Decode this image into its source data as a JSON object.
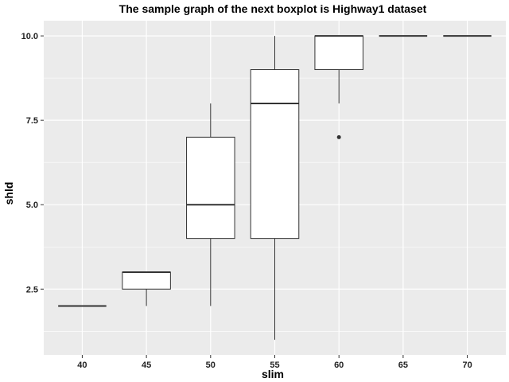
{
  "chart_data": {
    "type": "boxplot",
    "title": "The sample graph of the next boxplot is Highway1 dataset",
    "xlabel": "slim",
    "ylabel": "shld",
    "categories": [
      "40",
      "45",
      "50",
      "55",
      "60",
      "65",
      "70"
    ],
    "boxes": [
      {
        "category": "40",
        "min": 2,
        "q1": 2,
        "median": 2,
        "q3": 2,
        "max": 2,
        "outliers": []
      },
      {
        "category": "45",
        "min": 2,
        "q1": 2.5,
        "median": 3,
        "q3": 3,
        "max": 3,
        "outliers": []
      },
      {
        "category": "50",
        "min": 2,
        "q1": 4,
        "median": 5,
        "q3": 7,
        "max": 8,
        "outliers": []
      },
      {
        "category": "55",
        "min": 1,
        "q1": 4,
        "median": 8,
        "q3": 9,
        "max": 10,
        "outliers": []
      },
      {
        "category": "60",
        "min": 8,
        "q1": 9,
        "median": 10,
        "q3": 10,
        "max": 10,
        "outliers": [
          7
        ]
      },
      {
        "category": "65",
        "min": 10,
        "q1": 10,
        "median": 10,
        "q3": 10,
        "max": 10,
        "outliers": []
      },
      {
        "category": "70",
        "min": 10,
        "q1": 10,
        "median": 10,
        "q3": 10,
        "max": 10,
        "outliers": []
      }
    ],
    "yticks": [
      "2.5",
      "5.0",
      "7.5",
      "10.0"
    ],
    "ylim": [
      0.55,
      10.45
    ],
    "grid": true,
    "colors": {
      "panel": "#ebebeb",
      "grid": "#ffffff",
      "box_fill": "#ffffff",
      "box_line": "#333333"
    }
  }
}
